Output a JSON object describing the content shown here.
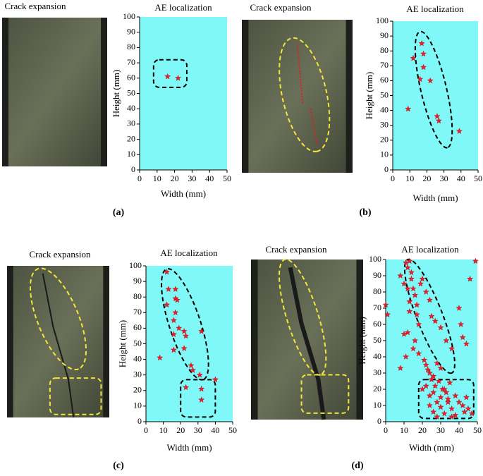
{
  "chart_data": [
    {
      "type": "scatter",
      "photo_title": "Crack expansion",
      "title": "AE localization",
      "xlabel": "Width (mm)",
      "ylabel": "Height (mm)",
      "panel_label": "(a)",
      "x": [
        16,
        22
      ],
      "y": [
        61,
        60
      ],
      "xlim": [
        0,
        50
      ],
      "ylim": [
        0,
        100
      ],
      "xticks": [
        0,
        10,
        20,
        30,
        40,
        50
      ],
      "yticks": [
        0,
        10,
        20,
        30,
        40,
        50,
        60,
        70,
        80,
        90,
        100
      ],
      "color": "#e8202a",
      "background": "#80f8f8"
    },
    {
      "type": "scatter",
      "photo_title": "Crack expansion",
      "title": "AE localization",
      "xlabel": "Width (mm)",
      "ylabel": "Height (mm)",
      "panel_label": "(b)",
      "x": [
        17,
        12,
        18,
        18,
        16,
        22,
        9,
        26,
        27,
        39
      ],
      "y": [
        85,
        75,
        78,
        69,
        61,
        60,
        41,
        36,
        33,
        26
      ],
      "xlim": [
        0,
        50
      ],
      "ylim": [
        0,
        100
      ],
      "xticks": [
        0,
        10,
        20,
        30,
        40,
        50
      ],
      "yticks": [
        0,
        10,
        20,
        30,
        40,
        50,
        60,
        70,
        80,
        90,
        100
      ],
      "color": "#e8202a",
      "background": "#80f8f8"
    },
    {
      "type": "scatter",
      "photo_title": "Crack expansion",
      "title": "AE localization",
      "xlabel": "Width (mm)",
      "ylabel": "Height (mm)",
      "panel_label": "(c)",
      "x": [
        12,
        13,
        17,
        12,
        17,
        18,
        17,
        16,
        19,
        22,
        16,
        23,
        32,
        22,
        16,
        8,
        26,
        27,
        31,
        40,
        23,
        32,
        32
      ],
      "y": [
        96,
        85,
        85,
        75,
        79,
        78,
        70,
        65,
        60,
        58,
        56,
        55,
        58,
        47,
        46,
        41,
        36,
        33,
        30,
        27,
        22,
        21,
        14
      ],
      "xlim": [
        0,
        50
      ],
      "ylim": [
        0,
        100
      ],
      "xticks": [
        0,
        10,
        20,
        30,
        40,
        50
      ],
      "yticks": [
        0,
        10,
        20,
        30,
        40,
        50,
        60,
        70,
        80,
        90,
        100
      ],
      "color": "#e8202a",
      "background": "#80f8f8"
    },
    {
      "type": "scatter",
      "photo_title": "Crack expansion",
      "title": "AE localization",
      "xlabel": "Width (mm)",
      "ylabel": "Height (mm)",
      "panel_label": "(d)",
      "x": [
        0,
        1,
        8,
        10,
        11,
        12,
        13,
        14,
        15,
        16,
        12,
        13,
        17,
        18,
        15,
        11,
        20,
        22,
        24,
        25,
        27,
        30,
        33,
        36,
        40,
        41,
        42,
        44,
        46,
        49,
        8,
        10,
        12,
        14,
        17,
        19,
        22,
        24,
        26,
        28,
        30,
        13,
        16,
        18,
        21,
        23,
        25,
        27,
        29,
        31,
        33,
        35,
        22,
        26,
        30,
        34,
        38,
        42,
        45,
        24,
        26,
        28,
        30,
        32,
        34,
        36,
        38,
        40,
        43,
        20,
        24,
        28,
        32,
        36,
        44,
        47
      ],
      "y": [
        72,
        66,
        90,
        85,
        98,
        95,
        99,
        88,
        82,
        78,
        55,
        68,
        72,
        60,
        45,
        40,
        88,
        80,
        75,
        65,
        62,
        58,
        50,
        45,
        70,
        60,
        52,
        48,
        88,
        99,
        33,
        54,
        82,
        92,
        66,
        85,
        35,
        30,
        28,
        36,
        33,
        74,
        50,
        42,
        38,
        32,
        26,
        22,
        25,
        20,
        18,
        24,
        22,
        18,
        15,
        12,
        16,
        10,
        8,
        10,
        6,
        12,
        9,
        5,
        14,
        8,
        4,
        12,
        6,
        20,
        16,
        3,
        20,
        3,
        15,
        5
      ],
      "xlim": [
        0,
        50
      ],
      "ylim": [
        0,
        100
      ],
      "xticks": [
        0,
        10,
        20,
        30,
        40,
        50
      ],
      "yticks": [
        0,
        10,
        20,
        30,
        40,
        50,
        60,
        70,
        80,
        90,
        100
      ],
      "color": "#e8202a",
      "background": "#80f8f8"
    }
  ]
}
